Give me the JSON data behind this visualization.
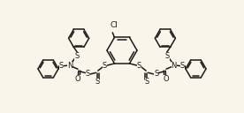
{
  "bg_color": "#faf5eb",
  "line_color": "#1a1a1a",
  "line_width": 1.1,
  "font_size": 6.0,
  "xlim": [
    0,
    10
  ],
  "ylim": [
    0,
    4.6
  ],
  "figsize": [
    2.76,
    1.28
  ],
  "dpi": 100
}
